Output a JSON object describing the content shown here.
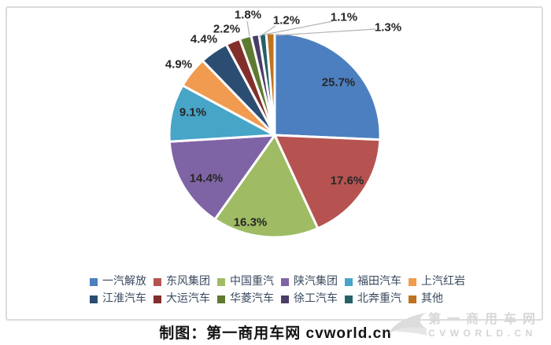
{
  "chart_data": {
    "type": "pie",
    "title": "",
    "categories": [
      "一汽解放",
      "东风集团",
      "中国重汽",
      "陕汽集团",
      "福田汽车",
      "上汽红岩",
      "江淮汽车",
      "大运汽车",
      "华菱汽车",
      "徐工汽车",
      "北奔重汽",
      "其他"
    ],
    "values": [
      25.7,
      17.6,
      16.3,
      14.4,
      9.1,
      4.9,
      4.4,
      2.2,
      1.8,
      1.2,
      1.1,
      1.3
    ],
    "labels": [
      "25.7%",
      "17.6%",
      "16.3%",
      "14.4%",
      "9.1%",
      "4.9%",
      "4.4%",
      "2.2%",
      "1.8%",
      "1.2%",
      "1.1%",
      "1.3%"
    ],
    "colors": [
      "#4c7fbf",
      "#b65351",
      "#9fbc64",
      "#7f64a5",
      "#47a5c8",
      "#f09b50",
      "#2c4d72",
      "#822f2b",
      "#5f7a31",
      "#4a3d68",
      "#266069",
      "#bf721f"
    ],
    "legend_position": "bottom",
    "start_angle_deg": 0,
    "direction": "clockwise",
    "label_color": "#262626",
    "leader_line_color": "#b3b3b3"
  },
  "caption": "制图：第一商用车网 cvworld.cn",
  "watermark": {
    "line1": "第一商用车网",
    "line2": "CVWORLD.CN"
  }
}
